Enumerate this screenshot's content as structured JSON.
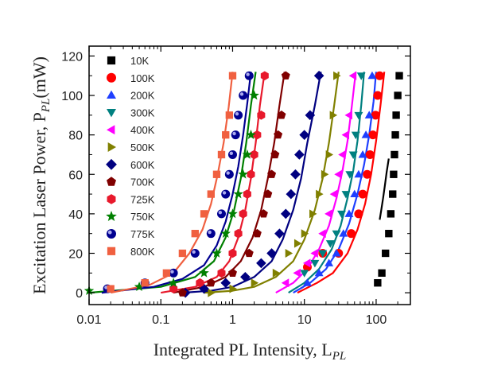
{
  "chart_data": {
    "type": "scatter",
    "title": "",
    "xlabel": "Integrated PL Intensity, L",
    "xlabel_sub": "PL",
    "ylabel": "Excitation Laser Power, P",
    "ylabel_sub": "PL",
    "ylabel_unit": "(mW)",
    "xscale": "log",
    "xlim": [
      0.01,
      300
    ],
    "ylim": [
      -6,
      125
    ],
    "x_ticks": [
      0.01,
      0.1,
      1,
      10,
      100
    ],
    "x_tick_labels": [
      "0.01",
      "0.1",
      "1",
      "10",
      "100"
    ],
    "y_ticks": [
      0,
      20,
      40,
      60,
      80,
      100,
      120
    ],
    "y_tick_labels": [
      "0",
      "20",
      "40",
      "60",
      "80",
      "100",
      "120"
    ],
    "legend_position": "top-left",
    "series": [
      {
        "name": "10K",
        "color": "#000000",
        "marker": "square",
        "x": [
          105,
          120,
          135,
          150,
          160,
          170,
          175,
          180,
          185,
          190,
          200,
          210
        ],
        "y": [
          5,
          10,
          20,
          30,
          40,
          50,
          60,
          70,
          80,
          90,
          100,
          110
        ],
        "fit_x": [
          112,
          118,
          125,
          132,
          140,
          150
        ],
        "fit_y": [
          37,
          42,
          48,
          54,
          61,
          68
        ]
      },
      {
        "name": "100K",
        "color": "#ff0000",
        "marker": "circle",
        "x": [
          11,
          18,
          30,
          45,
          57,
          65,
          75,
          82,
          90,
          98,
          105,
          112
        ],
        "y": [
          13,
          20,
          20,
          30,
          40,
          50,
          60,
          70,
          80,
          90,
          100,
          110
        ],
        "fit_x": [
          8,
          15,
          25,
          40,
          55,
          70,
          85,
          100,
          115,
          130
        ],
        "fit_y": [
          0,
          5,
          10,
          20,
          32,
          45,
          60,
          77,
          95,
          112
        ]
      },
      {
        "name": "200K",
        "color": "#1f3fff",
        "marker": "triangle-up",
        "x": [
          11,
          16,
          22,
          28,
          35,
          42,
          50,
          57,
          65,
          72,
          80,
          88
        ],
        "y": [
          5,
          10,
          15,
          20,
          30,
          40,
          50,
          60,
          70,
          80,
          90,
          110
        ],
        "fit_x": [
          7,
          12,
          20,
          30,
          42,
          55,
          68,
          80,
          92,
          100
        ],
        "fit_y": [
          0,
          5,
          12,
          22,
          35,
          50,
          65,
          80,
          97,
          112
        ]
      },
      {
        "name": "300K",
        "color": "#008080",
        "marker": "triangle-down",
        "x": [
          10,
          14,
          18,
          23,
          28,
          33,
          38,
          43,
          48,
          52,
          57,
          62
        ],
        "y": [
          10,
          15,
          20,
          25,
          30,
          40,
          50,
          60,
          70,
          80,
          90,
          110
        ],
        "fit_x": [
          6,
          10,
          16,
          24,
          32,
          40,
          48,
          55,
          62,
          68
        ],
        "fit_y": [
          0,
          5,
          12,
          22,
          34,
          48,
          62,
          77,
          95,
          112
        ]
      },
      {
        "name": "400K",
        "color": "#ff00ff",
        "marker": "triangle-left",
        "x": [
          5.5,
          8,
          11,
          14,
          18,
          22,
          26,
          30,
          34,
          38,
          42,
          48
        ],
        "y": [
          5,
          10,
          15,
          20,
          30,
          40,
          50,
          60,
          70,
          80,
          90,
          110
        ],
        "fit_x": [
          4,
          7,
          11,
          16,
          22,
          28,
          34,
          40,
          46,
          52
        ],
        "fit_y": [
          0,
          5,
          12,
          22,
          34,
          48,
          62,
          77,
          95,
          112
        ]
      },
      {
        "name": "500K",
        "color": "#808000",
        "marker": "triangle-right",
        "x": [
          0.5,
          1,
          2,
          4,
          6,
          8,
          10,
          13,
          16,
          19,
          22,
          25,
          28
        ],
        "y": [
          0,
          2,
          5,
          10,
          20,
          25,
          30,
          40,
          50,
          60,
          70,
          90,
          110
        ],
        "fit_x": [
          0.4,
          1,
          2,
          4,
          7,
          10,
          14,
          18,
          22,
          26,
          30
        ],
        "fit_y": [
          0,
          1,
          3,
          8,
          16,
          27,
          42,
          58,
          76,
          95,
          112
        ]
      },
      {
        "name": "600K",
        "color": "#000080",
        "marker": "diamond",
        "x": [
          0.22,
          0.4,
          0.8,
          1.5,
          2.5,
          3.5,
          4.5,
          5.5,
          6.5,
          7.5,
          8.5,
          10,
          12,
          16
        ],
        "y": [
          0,
          2,
          5,
          8,
          15,
          20,
          30,
          40,
          50,
          60,
          70,
          80,
          90,
          110
        ],
        "fit_x": [
          0.2,
          0.5,
          1,
          2,
          3.5,
          5,
          7,
          9,
          11,
          14,
          17
        ],
        "fit_y": [
          0,
          1,
          3,
          8,
          16,
          27,
          42,
          58,
          76,
          95,
          112
        ]
      },
      {
        "name": "700K",
        "color": "#800000",
        "marker": "pentagon",
        "x": [
          0.2,
          0.5,
          1,
          1.7,
          2.2,
          2.7,
          3.1,
          3.5,
          3.9,
          4.3,
          4.8,
          5.5
        ],
        "y": [
          0,
          5,
          10,
          20,
          30,
          40,
          50,
          60,
          70,
          80,
          90,
          110
        ],
        "fit_x": [
          0.15,
          0.4,
          0.8,
          1.3,
          1.9,
          2.5,
          3.1,
          3.8,
          4.5,
          5.3
        ],
        "fit_y": [
          0,
          3,
          8,
          16,
          28,
          42,
          58,
          76,
          95,
          112
        ]
      },
      {
        "name": "725K",
        "color": "#e8192c",
        "marker": "hexagon",
        "x": [
          0.15,
          0.35,
          0.7,
          1,
          1.2,
          1.4,
          1.6,
          1.8,
          2.0,
          2.2,
          2.5,
          2.8
        ],
        "y": [
          2,
          5,
          10,
          20,
          30,
          40,
          50,
          60,
          70,
          80,
          90,
          110
        ],
        "fit_x": [
          0.1,
          0.3,
          0.6,
          0.9,
          1.2,
          1.5,
          1.8,
          2.1,
          2.4,
          2.8
        ],
        "fit_y": [
          0,
          3,
          8,
          16,
          28,
          42,
          58,
          76,
          95,
          112
        ]
      },
      {
        "name": "750K",
        "color": "#008000",
        "marker": "star",
        "x": [
          0.01,
          0.05,
          0.15,
          0.4,
          0.6,
          0.8,
          1.0,
          1.2,
          1.4,
          1.6,
          1.8,
          2.0
        ],
        "y": [
          1,
          3,
          5,
          10,
          20,
          30,
          40,
          50,
          60,
          70,
          80,
          100
        ],
        "fit_x": [
          0.01,
          0.1,
          0.3,
          0.55,
          0.8,
          1.05,
          1.3,
          1.55,
          1.8,
          2.1
        ],
        "fit_y": [
          0,
          3,
          8,
          16,
          28,
          42,
          58,
          76,
          95,
          112
        ]
      },
      {
        "name": "775K",
        "color": "#000090",
        "marker": "sphere",
        "x": [
          0.018,
          0.06,
          0.15,
          0.3,
          0.5,
          0.7,
          0.8,
          0.9,
          1.0,
          1.1,
          1.2,
          1.4,
          1.7
        ],
        "y": [
          2,
          5,
          10,
          20,
          30,
          40,
          50,
          60,
          70,
          80,
          90,
          100,
          110
        ],
        "fit_x": [
          0.015,
          0.08,
          0.2,
          0.4,
          0.6,
          0.8,
          1.0,
          1.2,
          1.4,
          1.6,
          1.8
        ],
        "fit_y": [
          0,
          3,
          7,
          14,
          24,
          36,
          50,
          64,
          80,
          96,
          112
        ]
      },
      {
        "name": "800K",
        "color": "#f06040",
        "marker": "square",
        "x": [
          0.02,
          0.06,
          0.12,
          0.2,
          0.3,
          0.4,
          0.5,
          0.6,
          0.7,
          0.8,
          0.9,
          1.0
        ],
        "y": [
          2,
          5,
          10,
          20,
          30,
          40,
          50,
          60,
          70,
          80,
          90,
          110
        ],
        "fit_x": [
          0.02,
          0.07,
          0.15,
          0.25,
          0.38,
          0.5,
          0.62,
          0.75,
          0.88,
          1.0
        ],
        "fit_y": [
          0,
          4,
          10,
          20,
          32,
          45,
          60,
          76,
          94,
          112
        ]
      }
    ]
  }
}
